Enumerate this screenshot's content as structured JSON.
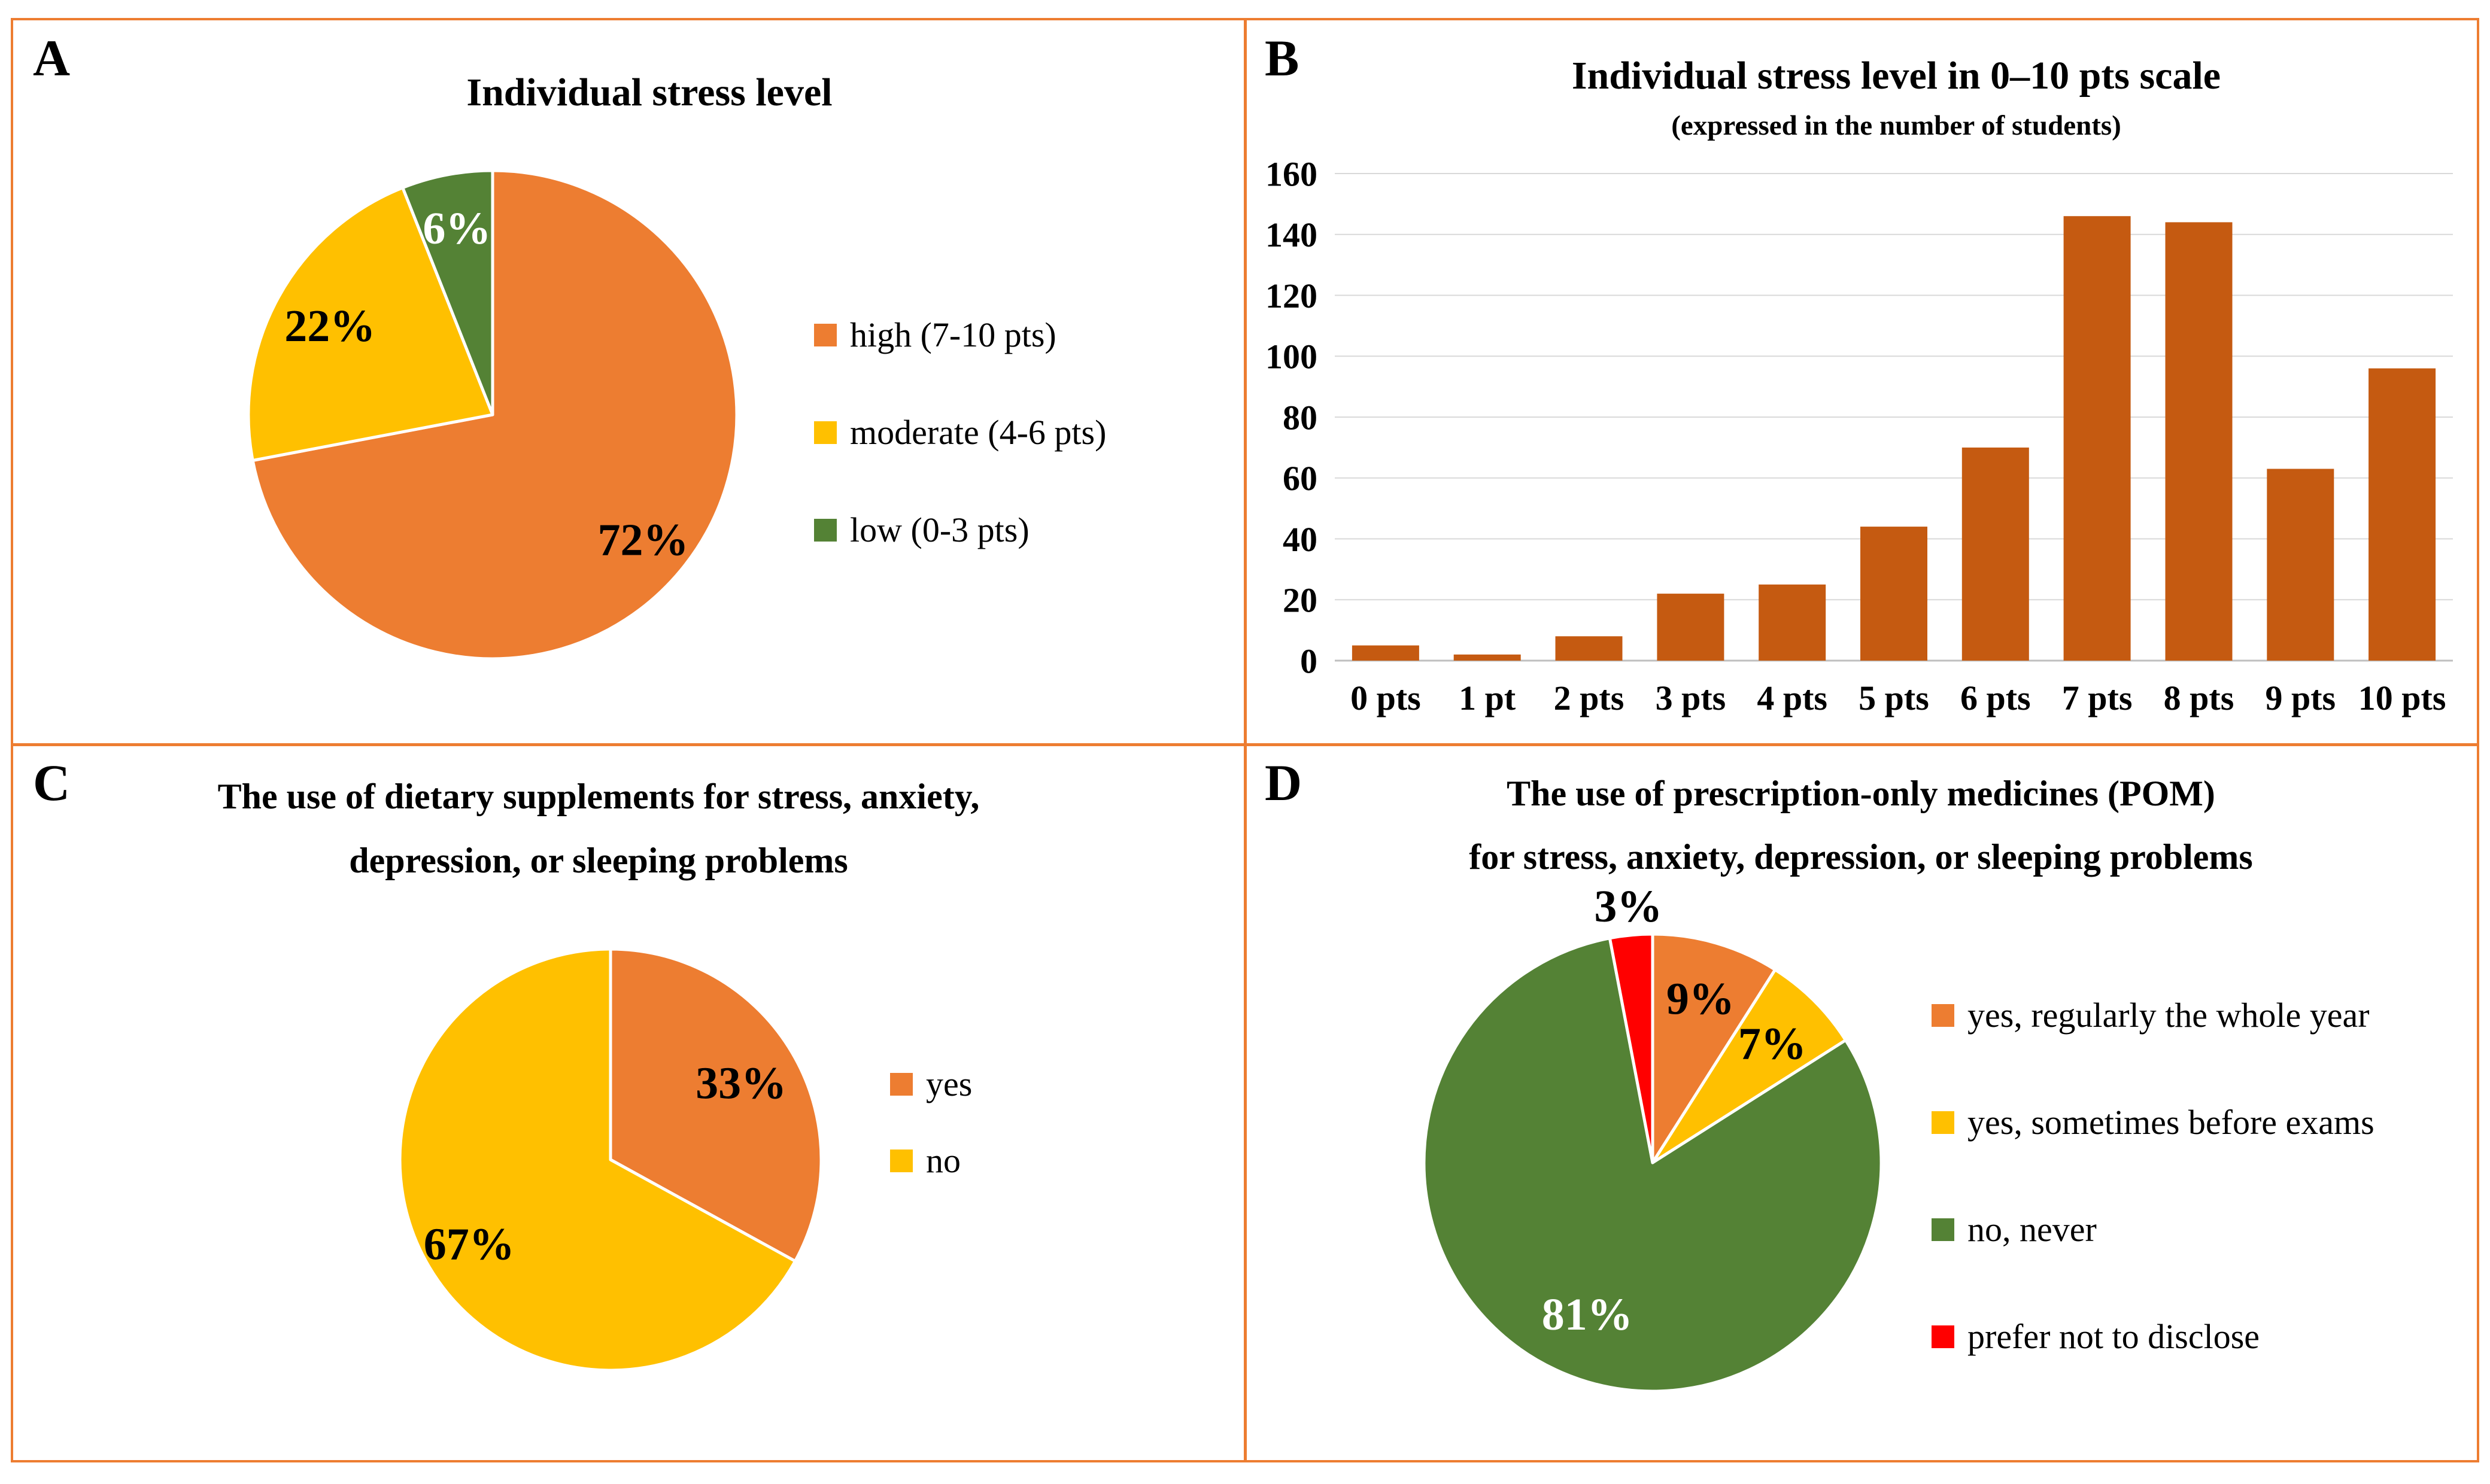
{
  "figure": {
    "background": "#FFFFFF",
    "border_color": "#ED7D31"
  },
  "colors": {
    "orange": "#ED7D31",
    "yellow": "#FFC000",
    "green": "#548235",
    "red": "#FF0000",
    "bar_orange": "#C55A11",
    "gridline": "#D9D9D9",
    "axis_line": "#BFBFBF"
  },
  "panels": {
    "a": {
      "letter": "A"
    },
    "b": {
      "letter": "B"
    },
    "c": {
      "letter": "C"
    },
    "d": {
      "letter": "D"
    }
  },
  "chart_data": [
    {
      "id": "A",
      "type": "pie",
      "title": "Individual stress level",
      "legend_position": "right",
      "slices": [
        {
          "label": "high (7-10 pts)",
          "value": 72,
          "display": "72%",
          "color": "#ED7D31",
          "label_color": "#000000"
        },
        {
          "label": "moderate (4-6 pts)",
          "value": 22,
          "display": "22%",
          "color": "#FFC000",
          "label_color": "#000000"
        },
        {
          "label": "low (0-3 pts)",
          "value": 6,
          "display": "6%",
          "color": "#548235",
          "label_color": "#FFFFFF"
        }
      ]
    },
    {
      "id": "B",
      "type": "bar",
      "title": "Individual stress level in 0–10 pts scale",
      "subtitle": "(expressed in the number of students)",
      "categories": [
        "0 pts",
        "1 pt",
        "2 pts",
        "3 pts",
        "4 pts",
        "5 pts",
        "6 pts",
        "7 pts",
        "8 pts",
        "9 pts",
        "10 pts"
      ],
      "values": [
        5,
        2,
        8,
        22,
        25,
        44,
        70,
        146,
        144,
        63,
        96
      ],
      "bar_color": "#C55A11",
      "xlabel": "",
      "ylabel": "",
      "ylim": [
        0,
        160
      ],
      "yticks": [
        0,
        20,
        40,
        60,
        80,
        100,
        120,
        140,
        160
      ],
      "grid": true
    },
    {
      "id": "C",
      "type": "pie",
      "title": "The use of dietary supplements for stress, anxiety, depression, or sleeping problems",
      "title_lines": [
        "The use of dietary supplements for stress, anxiety,",
        "depression, or sleeping problems"
      ],
      "legend_position": "right",
      "slices": [
        {
          "label": "yes",
          "value": 33,
          "display": "33%",
          "color": "#ED7D31",
          "label_color": "#000000"
        },
        {
          "label": "no",
          "value": 67,
          "display": "67%",
          "color": "#FFC000",
          "label_color": "#000000"
        }
      ]
    },
    {
      "id": "D",
      "type": "pie",
      "title": "The use of prescription-only medicines (POM) for stress, anxiety, depression, or sleeping problems",
      "title_lines": [
        "The use of prescription-only medicines (POM)",
        "for stress, anxiety, depression, or sleeping problems"
      ],
      "legend_position": "right",
      "slices": [
        {
          "label": "yes, regularly the whole year",
          "value": 9,
          "display": "9%",
          "color": "#ED7D31",
          "label_color": "#000000"
        },
        {
          "label": "yes, sometimes before exams",
          "value": 7,
          "display": "7%",
          "color": "#FFC000",
          "label_color": "#000000"
        },
        {
          "label": "no, never",
          "value": 81,
          "display": "81%",
          "color": "#548235",
          "label_color": "#FFFFFF"
        },
        {
          "label": "prefer not to disclose",
          "value": 3,
          "display": "3%",
          "color": "#FF0000",
          "label_color": "#000000",
          "label_outside": true
        }
      ]
    }
  ]
}
